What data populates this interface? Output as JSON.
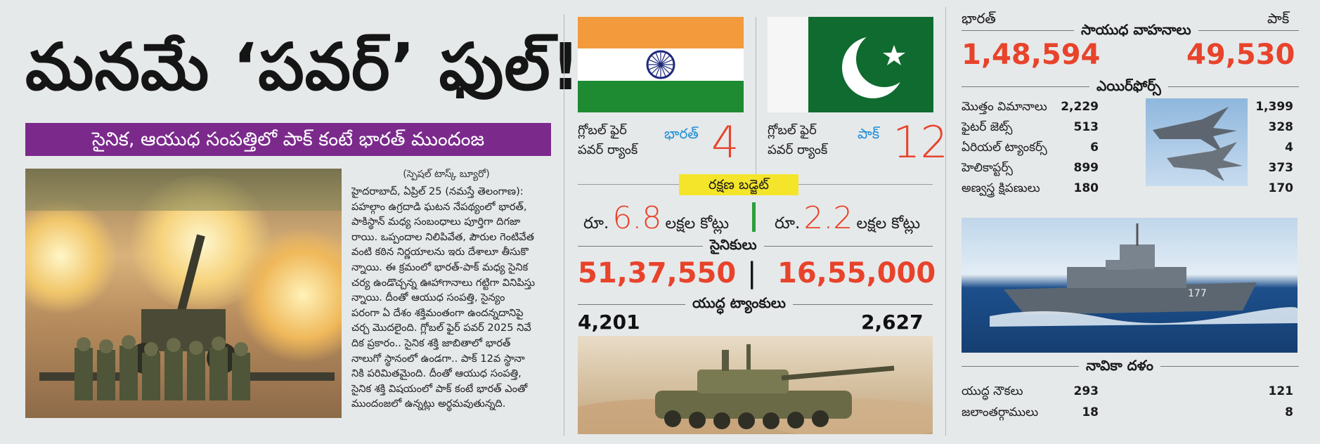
{
  "headline": "మనమే ‘పవర్’ ఫుల్!",
  "subhead": "సైనిక, ఆయుధ సంపత్తిలో పాక్ కంటే భారత్ ముందంజ",
  "article": {
    "byline": "(స్పెషల్ టాస్క్ బ్యూరో)",
    "lines": [
      "హైదరాబాద్, ఏప్రిల్ 25 (నమస్తే తెలంగాణ):",
      "పహల్గాం ఉగ్రదాడి ఘటన నేపథ్యంలో భారత్,",
      "పాకిస్థాన్ మధ్య సంబంధాలు పూర్తిగా దిగజా",
      "రాయి. ఒప్పందాల నిలిపివేత, పౌరుల గెంటివేత",
      "వంటి కఠిన నిర్ణయాలను ఇరు దేశాలూ తీసుకొ",
      "న్నాయి. ఈ క్రమంలో భారత్-పాక్ మధ్య సైనిక",
      "చర్య ఉండొచ్చన్న ఊహాగానాలు గట్టిగా వినిపిస్తు",
      "న్నాయి. దీంతో ఆయుధ సంపత్తి, సైన్యం",
      "పరంగా ఏ దేశం శక్తిమంతంగా ఉందన్నదానిపై",
      "చర్చ మొదలైంది. గ్లోబల్ ఫైర్ పవర్ 2025 నివే",
      "దిక ప్రకారం.. సైనిక శక్తి జాబితాలో భారత్",
      "నాలుగో స్థానంలో ఉండగా.. పాక్ 12వ స్థానా",
      "నికి పరిమితమైంది. దీంతో ఆయుధ సంపత్తి,",
      "సైనిక శక్తి విషయంలో పాక్ కంటే భారత్ ఎంతో",
      "ముందంజలో ఉన్నట్లు అర్థమవుతున్నది."
    ]
  },
  "gfp": {
    "label_line1": "గ్లోబల్ ఫైర్",
    "label_line2": "పవర్ ర్యాంక్",
    "india_name": "భారత్",
    "india_rank": "4",
    "pak_name": "పాక్",
    "pak_rank": "12"
  },
  "budget": {
    "title": "రక్షణ బడ్జెట్",
    "rs": "రూ.",
    "india_value": "6.8",
    "pak_value": "2.2",
    "unit": "లక్షల కోట్లు"
  },
  "soldiers": {
    "title": "సైనికులు",
    "india": "51,37,550",
    "sep": "|",
    "pak": "16,55,000"
  },
  "tanks": {
    "title": "యుద్ధ ట్యాంకులు",
    "india": "4,201",
    "pak": "2,627"
  },
  "right": {
    "india_label": "భారత్",
    "pak_label": "పాక్",
    "vehicles_title": "సాయుధ వాహనాలు",
    "vehicles_india": "1,48,594",
    "vehicles_pak": "49,530",
    "airforce_title": "ఎయిర్‌ఫోర్స్",
    "airforce_rows": [
      {
        "label": "మొత్తం విమానాలు",
        "india": "2,229",
        "pak": "1,399"
      },
      {
        "label": "ఫైటర్ జెట్స్",
        "india": "513",
        "pak": "328"
      },
      {
        "label": "ఏరియల్ ట్యాంకర్స్",
        "india": "6",
        "pak": "4"
      },
      {
        "label": "హెలికాప్టర్స్",
        "india": "899",
        "pak": "373"
      },
      {
        "label": "అణ్వస్త్ర క్షిపణులు",
        "india": "180",
        "pak": "170"
      }
    ],
    "navy_title": "నావికా దళం",
    "navy_rows": [
      {
        "label": "యుద్ధ నౌకలు",
        "india": "293",
        "pak": "121"
      },
      {
        "label": "జలాంతర్గాములు",
        "india": "18",
        "pak": "8"
      }
    ],
    "ship_number": "177"
  },
  "colors": {
    "accent_red": "#e8432b",
    "purple": "#7b2a8c",
    "budget_yellow": "#f4e52a",
    "country_blue": "#1f8fd6",
    "saffron": "#f39a3c",
    "india_green": "#1e8a32",
    "pak_green": "#0f6b2f"
  }
}
